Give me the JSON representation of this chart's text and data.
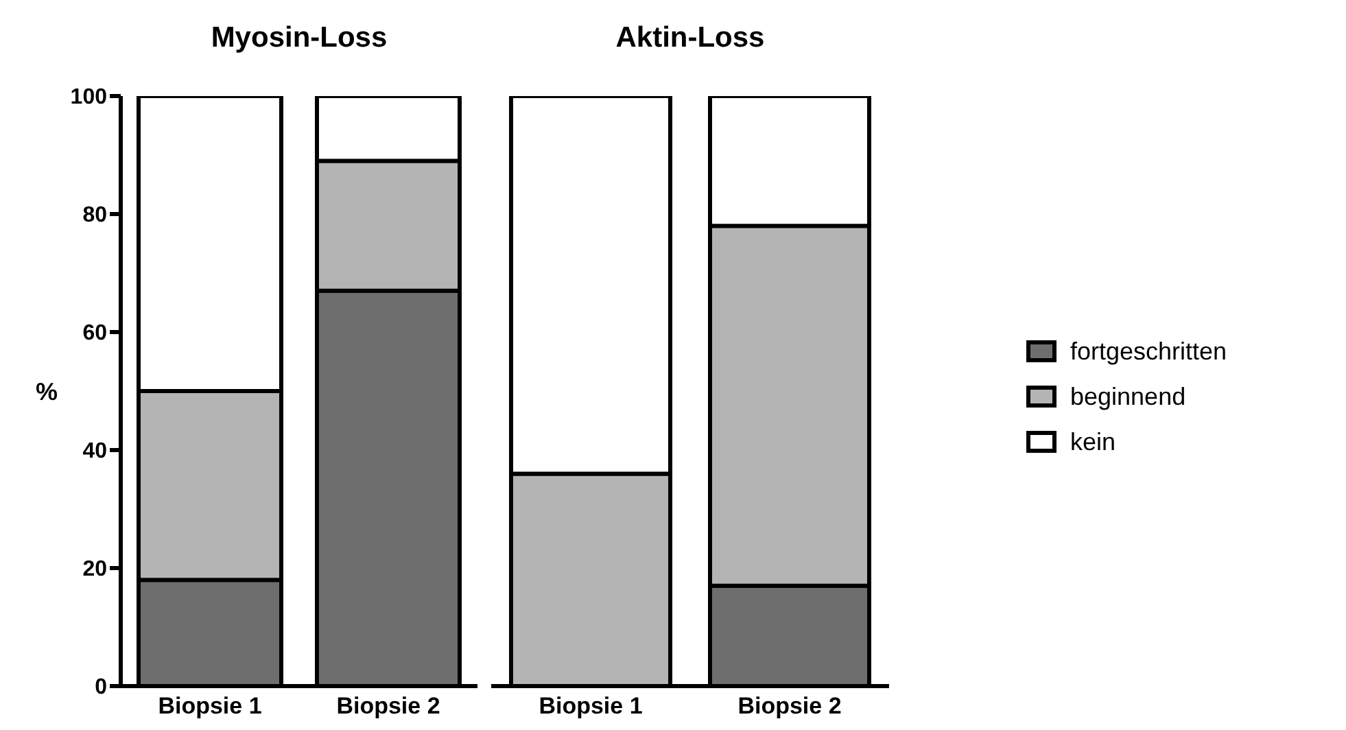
{
  "chart_data": [
    {
      "type": "bar",
      "title": "Myosin-Loss",
      "ylabel": "%",
      "stacked": true,
      "categories": [
        "Biopsie 1",
        "Biopsie 2"
      ],
      "ylim": [
        0,
        100
      ],
      "yticks": [
        0,
        20,
        40,
        60,
        80,
        100
      ],
      "grid": false,
      "legend": false,
      "series": [
        {
          "color": "#6e6e6e",
          "values": [
            18,
            67
          ]
        },
        {
          "color": "#b4b4b4",
          "values": [
            32,
            22
          ]
        },
        {
          "color": "#ffffff",
          "values": [
            50,
            11
          ]
        }
      ]
    },
    {
      "type": "bar",
      "title": "Aktin-Loss",
      "stacked": true,
      "categories": [
        "Biopsie 1",
        "Biopsie 2"
      ],
      "ylim": [
        0,
        100
      ],
      "yticks": [
        0,
        20,
        40,
        60,
        80,
        100
      ],
      "tick_labels": "x",
      "grid": false,
      "legend": "right",
      "series": [
        {
          "name": "fortgeschritten",
          "color": "#6e6e6e",
          "values": [
            0,
            17
          ]
        },
        {
          "name": "beginnend",
          "color": "#b4b4b4",
          "values": [
            36,
            61
          ]
        },
        {
          "name": "kein",
          "color": "#ffffff",
          "values": [
            64,
            22
          ]
        }
      ]
    }
  ]
}
